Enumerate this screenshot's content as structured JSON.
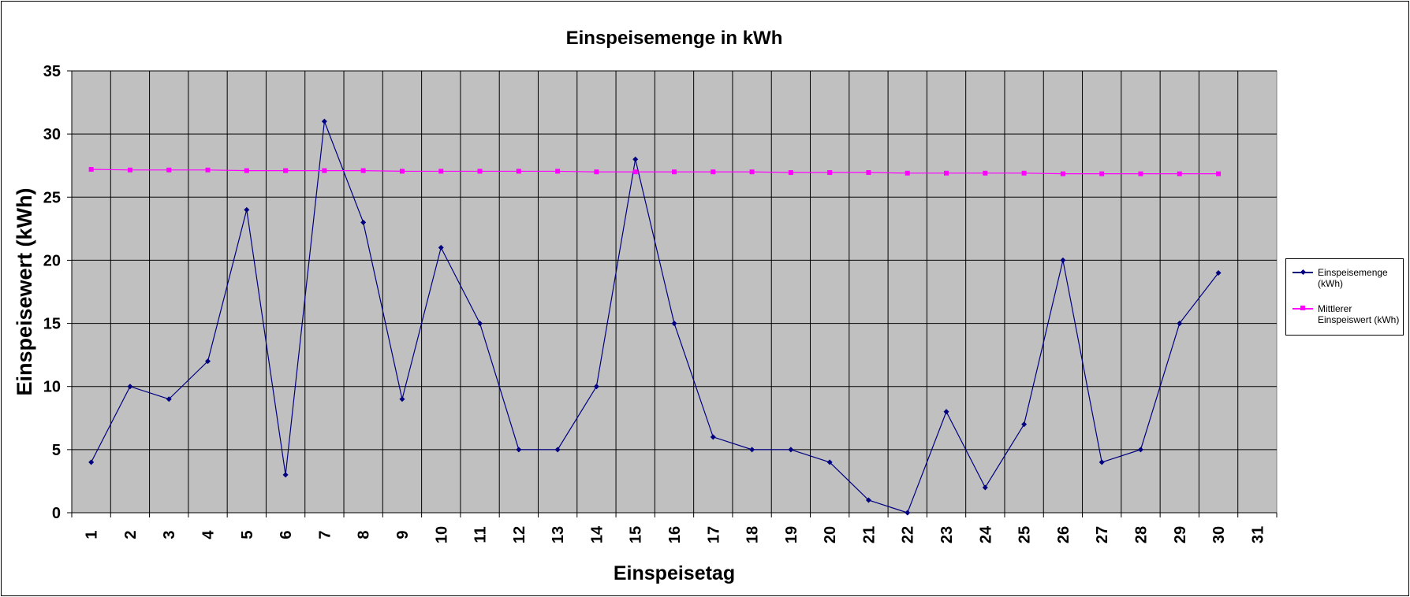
{
  "chart_data": {
    "type": "line",
    "title": "Einspeisemenge in kWh",
    "xlabel": "Einspeisetag",
    "ylabel": "Einspeisewert  (kWh)",
    "categories": [
      "1",
      "2",
      "3",
      "4",
      "5",
      "6",
      "7",
      "8",
      "9",
      "10",
      "11",
      "12",
      "13",
      "14",
      "15",
      "16",
      "17",
      "18",
      "19",
      "20",
      "21",
      "22",
      "23",
      "24",
      "25",
      "26",
      "27",
      "28",
      "29",
      "30",
      "31"
    ],
    "ylim": [
      0,
      35
    ],
    "yticks": [
      0,
      5,
      10,
      15,
      20,
      25,
      30,
      35
    ],
    "grid": true,
    "legend_position": "right",
    "plot_background": "#c0c0c0",
    "series": [
      {
        "name": "Einspeisemenge (kWh)",
        "color": "#000080",
        "marker": "diamond",
        "values": [
          4,
          10,
          9,
          12,
          24,
          3,
          31,
          23,
          9,
          21,
          15,
          5,
          5,
          10,
          28,
          15,
          6,
          5,
          5,
          4,
          1,
          0,
          8,
          2,
          7,
          20,
          4,
          5,
          15,
          19,
          null
        ]
      },
      {
        "name": "Mittlerer Einspeiswert (kWh)",
        "color": "#ff00ff",
        "marker": "square",
        "values": [
          27.2,
          27.15,
          27.15,
          27.15,
          27.1,
          27.1,
          27.1,
          27.1,
          27.05,
          27.05,
          27.05,
          27.05,
          27.05,
          27.0,
          27.0,
          27.0,
          27.0,
          27.0,
          26.95,
          26.95,
          26.95,
          26.9,
          26.9,
          26.9,
          26.9,
          26.85,
          26.85,
          26.85,
          26.85,
          26.85,
          null
        ]
      }
    ]
  },
  "legend": {
    "items": [
      {
        "line1": "Einspeisemenge",
        "line2": "(kWh)"
      },
      {
        "line1": "Mittlerer",
        "line2": "Einspeiswert (kWh)"
      }
    ]
  }
}
